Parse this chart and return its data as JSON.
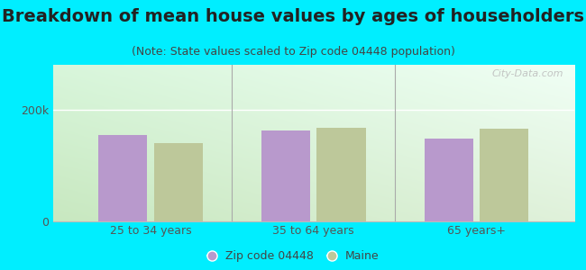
{
  "title": "Breakdown of mean house values by ages of householders",
  "subtitle": "(Note: State values scaled to Zip code 04448 population)",
  "categories": [
    "25 to 34 years",
    "35 to 64 years",
    "65 years+"
  ],
  "zip_values": [
    155000,
    162000,
    148000
  ],
  "state_values": [
    140000,
    168000,
    165000
  ],
  "ylim": [
    0,
    280000
  ],
  "yticks": [
    0,
    200000
  ],
  "ytick_labels": [
    "0",
    "200k"
  ],
  "zip_color": "#b899cc",
  "state_color": "#bdc89a",
  "background_outer": "#00eeff",
  "bar_width": 0.3,
  "legend_zip_label": "Zip code 04448",
  "legend_state_label": "Maine",
  "watermark": "City-Data.com",
  "title_fontsize": 14,
  "subtitle_fontsize": 9,
  "tick_fontsize": 9,
  "legend_fontsize": 9,
  "grad_top_left": "#e8f5e8",
  "grad_bottom_left": "#c8e8c0",
  "grad_top_right": "#f5fff5",
  "grad_bottom_right": "#e0f0d8"
}
